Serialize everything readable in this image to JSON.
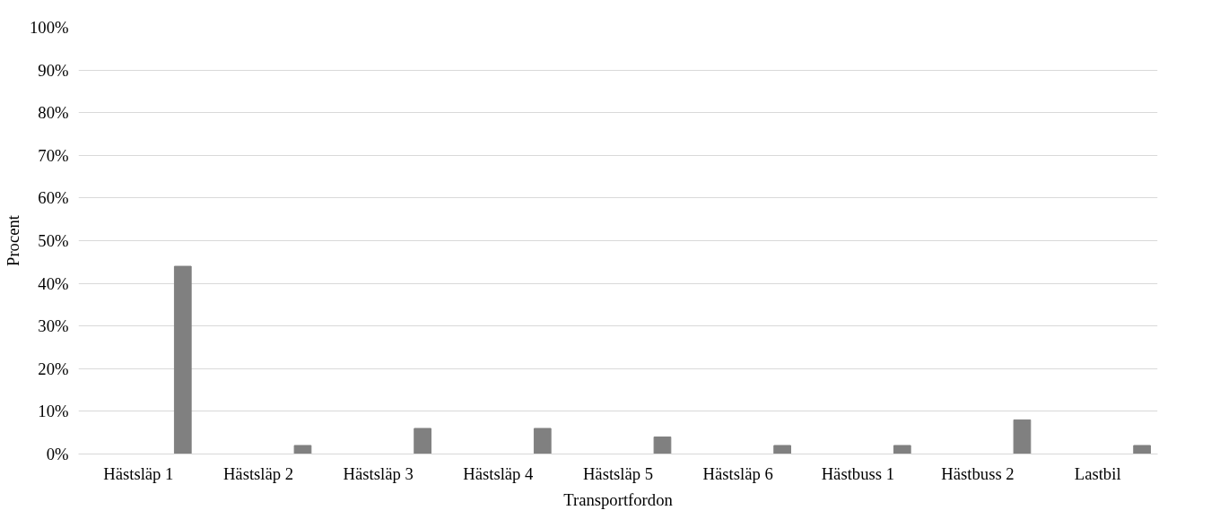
{
  "chart_data": {
    "type": "bar",
    "xlabel": "Transportfordon",
    "ylabel": "Procent",
    "categories": [
      "Hästsläp 1",
      "Hästsläp 2",
      "Hästsläp 3",
      "Hästsläp 4",
      "Hästsläp 5",
      "Hästsläp 6",
      "Hästbuss 1",
      "Hästbuss 2",
      "Lastbil"
    ],
    "values": [
      44,
      2,
      6,
      6,
      4,
      2,
      2,
      8,
      2
    ],
    "color": "#808080",
    "ylim": [
      0,
      100
    ],
    "yticks": [
      {
        "value": 0,
        "label": "0%"
      },
      {
        "value": 10,
        "label": "10%"
      },
      {
        "value": 20,
        "label": "20%"
      },
      {
        "value": 30,
        "label": "30%"
      },
      {
        "value": 40,
        "label": "40%"
      },
      {
        "value": 50,
        "label": "50%"
      },
      {
        "value": 60,
        "label": "60%"
      },
      {
        "value": 70,
        "label": "70%"
      },
      {
        "value": 80,
        "label": "80%"
      },
      {
        "value": 90,
        "label": "90%"
      },
      {
        "value": 100,
        "label": "100%"
      }
    ],
    "grid": "y"
  }
}
